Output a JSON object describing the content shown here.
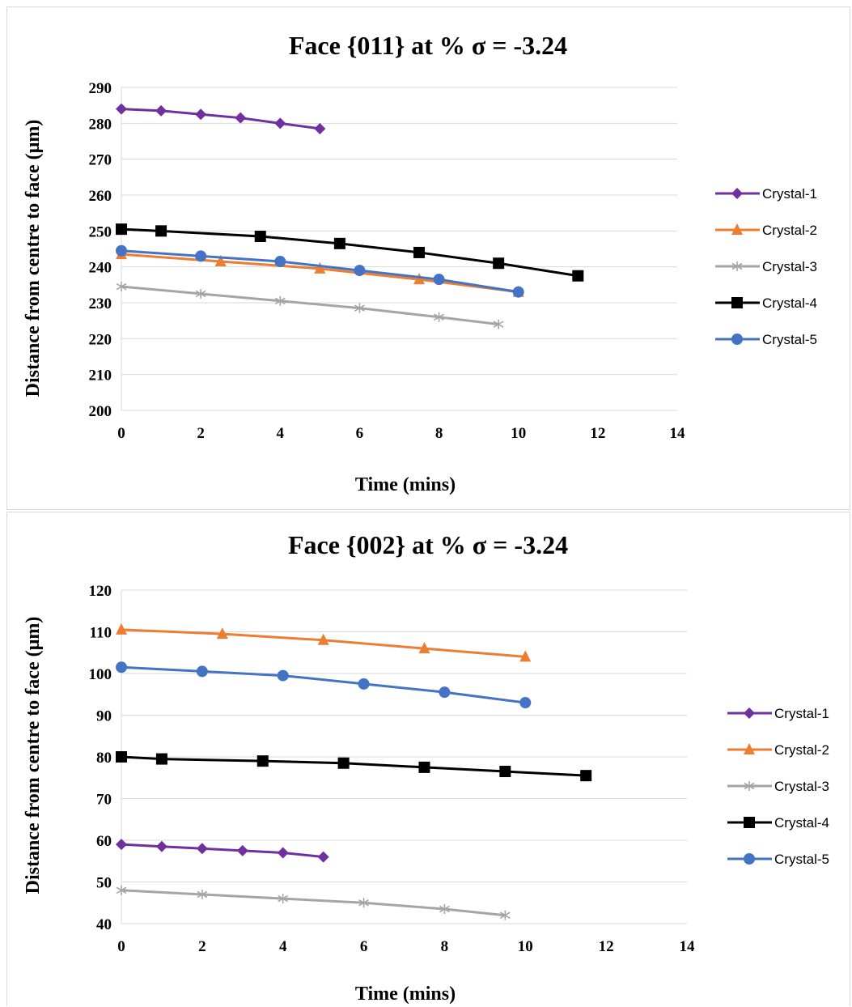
{
  "chart_data": [
    {
      "type": "line",
      "title": "Face {011} at % σ = -3.24",
      "xlabel": "Time (mins)",
      "ylabel": "Distance from centre to face (µm)",
      "xlim": [
        0,
        14
      ],
      "ylim": [
        200,
        290
      ],
      "xticks": [
        0,
        2,
        4,
        6,
        8,
        10,
        12,
        14
      ],
      "yticks": [
        200,
        210,
        220,
        230,
        240,
        250,
        260,
        270,
        280,
        290
      ],
      "grid": "horizontal",
      "legend_position": "right",
      "series": [
        {
          "name": "Crystal-1",
          "color": "#7030A0",
          "marker": "diamond",
          "x": [
            0,
            1,
            2,
            3,
            4,
            5
          ],
          "y": [
            284,
            283.5,
            282.5,
            281.5,
            280,
            278.5
          ]
        },
        {
          "name": "Crystal-2",
          "color": "#ED7D31",
          "marker": "triangle",
          "x": [
            0,
            2.5,
            5,
            7.5,
            10
          ],
          "y": [
            243.5,
            241.5,
            239.5,
            236.5,
            233
          ]
        },
        {
          "name": "Crystal-3",
          "color": "#A5A5A5",
          "marker": "asterisk",
          "x": [
            0,
            2,
            4,
            6,
            8,
            9.5
          ],
          "y": [
            234.5,
            232.5,
            230.5,
            228.5,
            226,
            224
          ]
        },
        {
          "name": "Crystal-4",
          "color": "#000000",
          "marker": "square",
          "x": [
            0,
            1,
            3.5,
            5.5,
            7.5,
            9.5,
            11.5
          ],
          "y": [
            250.5,
            250,
            248.5,
            246.5,
            244,
            241,
            237.5
          ]
        },
        {
          "name": "Crystal-5",
          "color": "#4472C4",
          "marker": "circle",
          "x": [
            0,
            2,
            4,
            6,
            8,
            10
          ],
          "y": [
            244.5,
            243,
            241.5,
            239,
            236.5,
            233
          ]
        }
      ]
    },
    {
      "type": "line",
      "title": "Face {002} at % σ = -3.24",
      "xlabel": "Time (mins)",
      "ylabel": "Distance from centre to face (µm)",
      "xlim": [
        0,
        14
      ],
      "ylim": [
        40,
        120
      ],
      "xticks": [
        0,
        2,
        4,
        6,
        8,
        10,
        12,
        14
      ],
      "yticks": [
        40,
        50,
        60,
        70,
        80,
        90,
        100,
        110,
        120
      ],
      "grid": "horizontal",
      "legend_position": "right",
      "series": [
        {
          "name": "Crystal-1",
          "color": "#7030A0",
          "marker": "diamond",
          "x": [
            0,
            1,
            2,
            3,
            4,
            5
          ],
          "y": [
            59,
            58.5,
            58,
            57.5,
            57,
            56
          ]
        },
        {
          "name": "Crystal-2",
          "color": "#ED7D31",
          "marker": "triangle",
          "x": [
            0,
            2.5,
            5,
            7.5,
            10
          ],
          "y": [
            110.5,
            109.5,
            108,
            106,
            104
          ]
        },
        {
          "name": "Crystal-3",
          "color": "#A5A5A5",
          "marker": "asterisk",
          "x": [
            0,
            2,
            4,
            6,
            8,
            9.5
          ],
          "y": [
            48,
            47,
            46,
            45,
            43.5,
            42
          ]
        },
        {
          "name": "Crystal-4",
          "color": "#000000",
          "marker": "square",
          "x": [
            0,
            1,
            3.5,
            5.5,
            7.5,
            9.5,
            11.5
          ],
          "y": [
            80,
            79.5,
            79,
            78.5,
            77.5,
            76.5,
            75.5
          ]
        },
        {
          "name": "Crystal-5",
          "color": "#4472C4",
          "marker": "circle",
          "x": [
            0,
            2,
            4,
            6,
            8,
            10
          ],
          "y": [
            101.5,
            100.5,
            99.5,
            97.5,
            95.5,
            93
          ]
        }
      ]
    }
  ]
}
